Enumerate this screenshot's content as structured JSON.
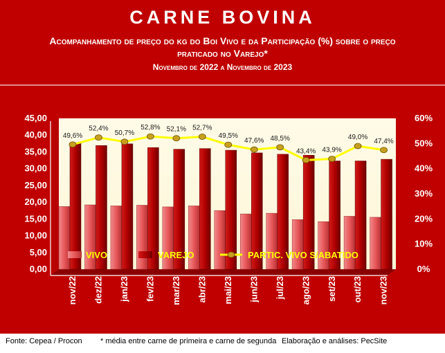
{
  "header": {
    "title": "CARNE BOVINA",
    "subtitle_line1": "Acompanhamento de preço do kg do Boi Vivo e da Participação (%) sobre o preço",
    "subtitle_line2": "praticado no Varejo*",
    "period": "Novembro de 2022 a Novembro de 2023"
  },
  "footer": {
    "source": "Fonte: Cepea / Procon",
    "note": "* média entre carne de primeira e carne de segunda",
    "credit": "Elaboração e análises: PecSite"
  },
  "colors": {
    "frame": "#c00000",
    "plot_bg": "#fdf5d6",
    "vivo": "#e8585a",
    "varejo": "#b00000",
    "line": "#ffff00",
    "marker": "#c8a020"
  },
  "chart_data": {
    "type": "bar",
    "categories": [
      "nov/22",
      "dez/22",
      "jan/23",
      "fev/23",
      "mar/23",
      "abr/23",
      "mai/23",
      "jun/23",
      "jul/23",
      "ago/23",
      "set/23",
      "out/23",
      "nov/23"
    ],
    "series": [
      {
        "name": "VIVO",
        "type": "bar",
        "axis": "left",
        "values": [
          18.7,
          19.2,
          18.9,
          19.1,
          18.6,
          18.9,
          17.5,
          16.5,
          16.7,
          14.8,
          14.2,
          15.8,
          15.5
        ]
      },
      {
        "name": "VAREJO",
        "type": "bar",
        "axis": "left",
        "values": [
          37.7,
          36.9,
          37.4,
          36.3,
          35.8,
          36.0,
          35.5,
          34.7,
          34.3,
          34.0,
          32.3,
          32.3,
          32.8
        ]
      },
      {
        "name": "PARTIC. VIVO S/ABATIDO",
        "type": "line",
        "axis": "right",
        "values": [
          49.6,
          52.4,
          50.7,
          52.8,
          52.1,
          52.7,
          49.5,
          47.6,
          48.5,
          43.4,
          43.9,
          49.0,
          47.4
        ],
        "labels": [
          "49,6%",
          "52,4%",
          "50,7%",
          "52,8%",
          "52,1%",
          "52,7%",
          "49,5%",
          "47,6%",
          "48,5%",
          "43,4%",
          "43,9%",
          "49,0%",
          "47,4%"
        ]
      }
    ],
    "y_left": {
      "min": 0,
      "max": 45,
      "ticks": [
        "0,00",
        "5,00",
        "10,00",
        "15,00",
        "20,00",
        "25,00",
        "30,00",
        "35,00",
        "40,00",
        "45,00"
      ]
    },
    "y_right": {
      "min": 0,
      "max": 60,
      "ticks": [
        "0%",
        "10%",
        "20%",
        "30%",
        "40%",
        "50%",
        "60%"
      ]
    },
    "legend_position": "bottom-inside",
    "grid": false
  }
}
